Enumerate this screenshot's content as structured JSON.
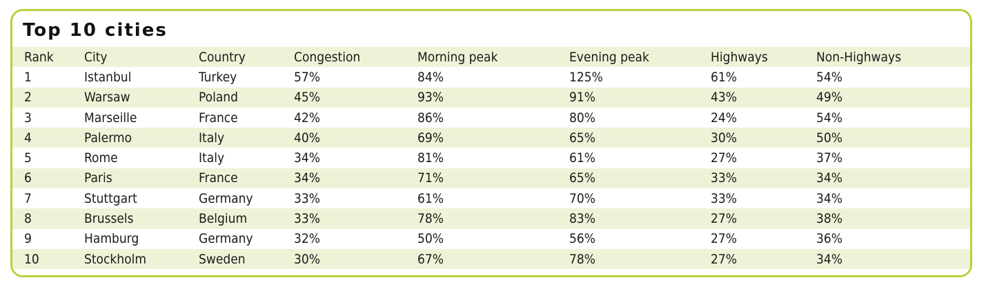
{
  "title": "Top 10 cities",
  "table": {
    "headers": [
      "Rank",
      "City",
      "Country",
      "Congestion",
      "Morning peak",
      "Evening peak",
      "Highways",
      "Non-Highways"
    ],
    "rows": [
      [
        "1",
        "Istanbul",
        "Turkey",
        "57%",
        "84%",
        "125%",
        "61%",
        "54%"
      ],
      [
        "2",
        "Warsaw",
        "Poland",
        "45%",
        "93%",
        "91%",
        "43%",
        "49%"
      ],
      [
        "3",
        "Marseille",
        "France",
        "42%",
        "86%",
        "80%",
        "24%",
        "54%"
      ],
      [
        "4",
        "Palermo",
        "Italy",
        "40%",
        "69%",
        "65%",
        "30%",
        "50%"
      ],
      [
        "5",
        "Rome",
        "Italy",
        "34%",
        "81%",
        "61%",
        "27%",
        "37%"
      ],
      [
        "6",
        "Paris",
        "France",
        "34%",
        "71%",
        "65%",
        "33%",
        "34%"
      ],
      [
        "7",
        "Stuttgart",
        "Germany",
        "33%",
        "61%",
        "70%",
        "33%",
        "34%"
      ],
      [
        "8",
        "Brussels",
        "Belgium",
        "33%",
        "78%",
        "83%",
        "27%",
        "38%"
      ],
      [
        "9",
        "Hamburg",
        "Germany",
        "32%",
        "50%",
        "56%",
        "27%",
        "36%"
      ],
      [
        "10",
        "Stockholm",
        "Sweden",
        "30%",
        "67%",
        "78%",
        "27%",
        "34%"
      ]
    ]
  },
  "colors": {
    "border": "#b6d23a",
    "stripe": "#eef3d7",
    "text": "#1a1a1a"
  }
}
